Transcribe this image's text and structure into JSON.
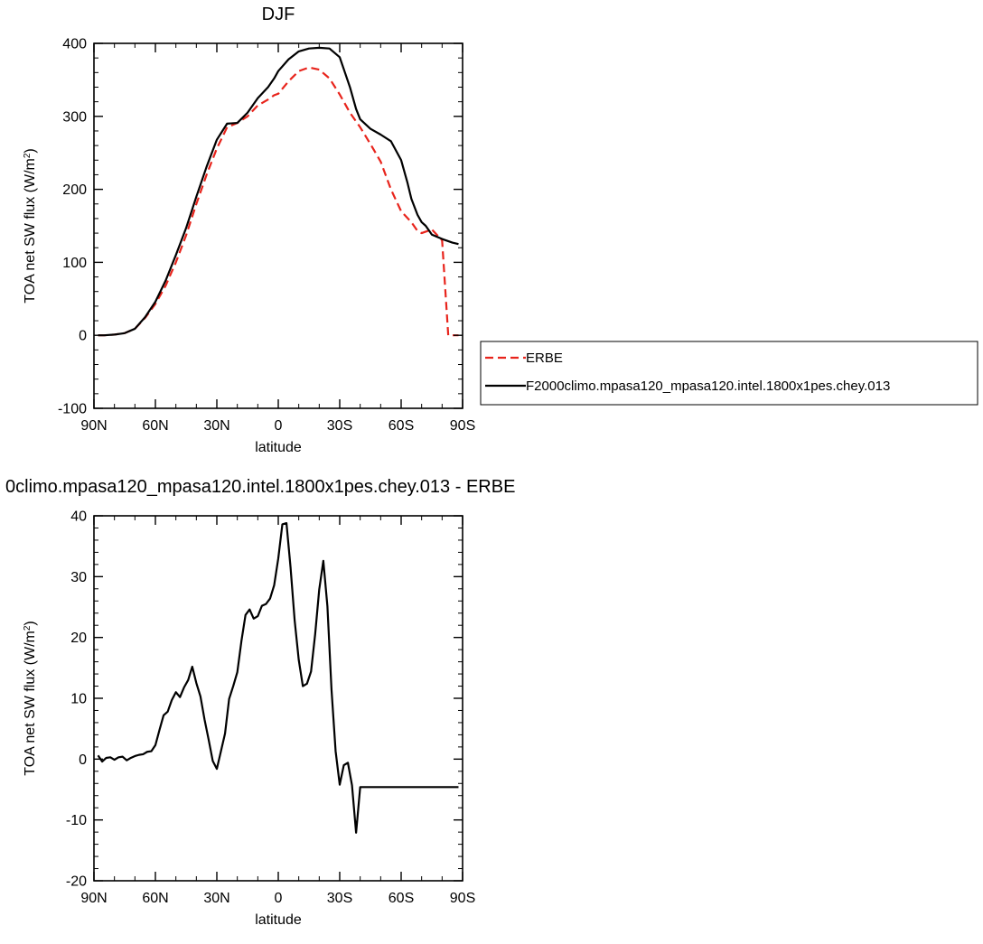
{
  "chart_data": [
    {
      "type": "line",
      "title": "DJF",
      "xlabel": "latitude",
      "ylabel": "TOA net SW flux (W/m²)",
      "ylabel_main": "TOA net SW flux (W/m",
      "ylabel_sup": "2",
      "ylabel_close": ")",
      "xlim": [
        90,
        -90
      ],
      "ylim": [
        -100,
        400
      ],
      "x_ticks": [
        90,
        60,
        30,
        0,
        -30,
        -60,
        -90
      ],
      "x_tick_labels": [
        "90N",
        "60N",
        "30N",
        "0",
        "30S",
        "60S",
        "90S"
      ],
      "y_ticks": [
        -100,
        0,
        100,
        200,
        300,
        400
      ],
      "y_tick_labels": [
        "-100",
        "0",
        "100",
        "200",
        "300",
        "400"
      ],
      "grid": false,
      "legend_placement": "right",
      "series": [
        {
          "name": "ERBE",
          "style": "dashed",
          "color": "#e8241c",
          "x": [
            88,
            85,
            80,
            75,
            70,
            65,
            60,
            55,
            50,
            45,
            40,
            35,
            30,
            25,
            20,
            15,
            10,
            5,
            2,
            0,
            -5,
            -10,
            -15,
            -20,
            -25,
            -30,
            -35,
            -40,
            -45,
            -50,
            -55,
            -60,
            -65,
            -68,
            -70,
            -72,
            -75,
            -80,
            -83,
            -85,
            -88
          ],
          "y": [
            0,
            0,
            1,
            3,
            9,
            24,
            43,
            68,
            100,
            137,
            180,
            220,
            256,
            285,
            291,
            300,
            315,
            323,
            329,
            331,
            348,
            362,
            367,
            364,
            352,
            330,
            305,
            285,
            262,
            238,
            200,
            170,
            155,
            143,
            140,
            142,
            145,
            130,
            0,
            0,
            0
          ]
        },
        {
          "name": "F2000climo.mpasa120_mpasa120.intel.1800x1pes.chey.013",
          "style": "solid",
          "color": "#000000",
          "x": [
            88,
            85,
            80,
            75,
            70,
            65,
            60,
            55,
            50,
            45,
            40,
            35,
            30,
            25,
            20,
            15,
            10,
            5,
            2,
            0,
            -5,
            -10,
            -15,
            -20,
            -25,
            -30,
            -35,
            -38,
            -40,
            -45,
            -50,
            -55,
            -60,
            -63,
            -65,
            -68,
            -70,
            -72,
            -75,
            -80,
            -85,
            -88
          ],
          "y": [
            0,
            0,
            1,
            3,
            9,
            25,
            46,
            75,
            110,
            147,
            190,
            231,
            268,
            290,
            291,
            305,
            325,
            340,
            352,
            362,
            378,
            389,
            393,
            394,
            393,
            381,
            340,
            310,
            296,
            283,
            275,
            266,
            240,
            210,
            187,
            165,
            155,
            150,
            138,
            132,
            127,
            125
          ]
        }
      ]
    },
    {
      "type": "line",
      "title": "0climo.mpasa120_mpasa120.intel.1800x1pes.chey.013 - ERBE",
      "xlabel": "latitude",
      "ylabel": "TOA net SW flux (W/m²)",
      "ylabel_main": "TOA net SW flux (W/m",
      "ylabel_sup": "2",
      "ylabel_close": ")",
      "xlim": [
        90,
        -90
      ],
      "ylim": [
        -20,
        40
      ],
      "x_ticks": [
        90,
        60,
        30,
        0,
        -30,
        -60,
        -90
      ],
      "x_tick_labels": [
        "90N",
        "60N",
        "30N",
        "0",
        "30S",
        "60S",
        "90S"
      ],
      "y_ticks": [
        -20,
        -10,
        0,
        10,
        20,
        30,
        40
      ],
      "y_tick_labels": [
        "-20",
        "-10",
        "0",
        "10",
        "20",
        "30",
        "40"
      ],
      "grid": false,
      "series": [
        {
          "style": "solid",
          "color": "#000000",
          "x": [
            88,
            86,
            84,
            82,
            80,
            78,
            76,
            74,
            72,
            70,
            68,
            66,
            64,
            62,
            60,
            58,
            56,
            54,
            52,
            50,
            48,
            46,
            44,
            42,
            40,
            38,
            36,
            34,
            32,
            30,
            28,
            26,
            24,
            22,
            20,
            18,
            16,
            14,
            12,
            10,
            8,
            6,
            4,
            2,
            0,
            -2,
            -4,
            -6,
            -8,
            -10,
            -12,
            -14,
            -16,
            -18,
            -20,
            -22,
            -24,
            -26,
            -28,
            -30,
            -32,
            -34,
            -36,
            -38,
            -40,
            -42,
            -44,
            -46,
            -48,
            -50,
            -52,
            -54,
            -56,
            -58,
            -60,
            -62,
            -64,
            -66,
            -68,
            -70,
            -72,
            -74,
            -76,
            -78,
            -80,
            -82,
            -84,
            -86,
            -88
          ],
          "y": [
            0.6,
            -0.4,
            0.2,
            0.3,
            -0.1,
            0.3,
            0.4,
            -0.2,
            0.2,
            0.5,
            0.7,
            0.8,
            1.2,
            1.3,
            2.3,
            4.8,
            7.2,
            7.8,
            9.7,
            11.0,
            10.2,
            11.8,
            13.0,
            15.2,
            12.5,
            10.3,
            6.5,
            3.2,
            -0.3,
            -1.6,
            1.3,
            4.2,
            9.9,
            12.0,
            14.3,
            19.4,
            23.7,
            24.6,
            23.1,
            23.5,
            25.2,
            25.5,
            26.4,
            28.6,
            33.0,
            38.6,
            38.8,
            31.5,
            22.8,
            16.3,
            12.0,
            12.4,
            14.4,
            20.5,
            27.9,
            32.6,
            25.1,
            11.4,
            1.3,
            -4.2,
            -1.0,
            -0.6,
            -4.3,
            -12.1,
            -4.6,
            -4.6,
            -4.6,
            -4.6,
            -4.6,
            -4.6,
            -4.6,
            -4.6,
            -4.6,
            -4.6,
            -4.6,
            -4.6,
            -4.6,
            -4.6,
            -4.6,
            -4.6,
            -4.6,
            -4.6,
            -4.6,
            -4.6,
            -4.6,
            -4.6,
            -4.6,
            -4.6,
            -4.6
          ]
        }
      ]
    }
  ]
}
